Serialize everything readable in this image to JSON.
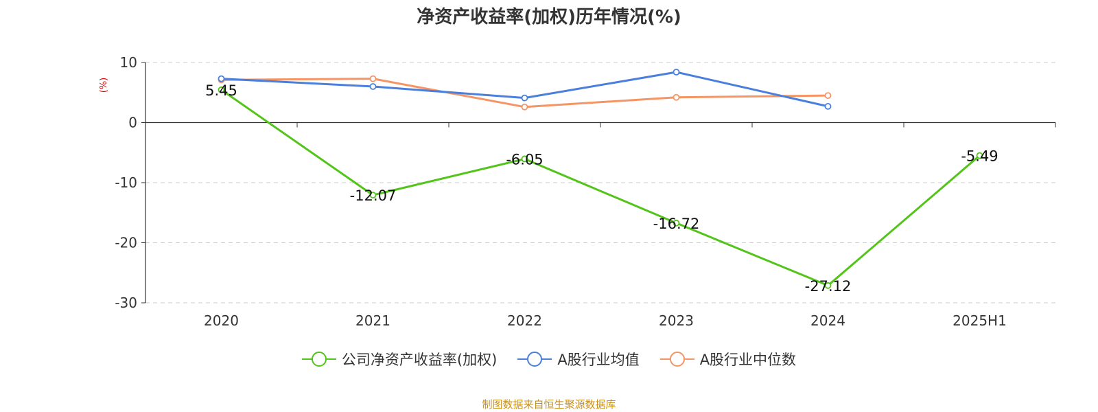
{
  "chart_data": {
    "type": "line",
    "title": "净资产收益率(加权)历年情况(%)",
    "ylabel": "(%)",
    "categories": [
      "2020",
      "2021",
      "2022",
      "2023",
      "2024",
      "2025H1"
    ],
    "ylim": [
      -30,
      10
    ],
    "yticks": [
      "10",
      "0",
      "-10",
      "-20",
      "-30"
    ],
    "grid": true,
    "legend_position": "bottom-center",
    "series": [
      {
        "name": "公司净资产收益率(加权)",
        "color": "#52c41a",
        "values": [
          5.45,
          -12.07,
          -6.05,
          -16.72,
          -27.12,
          -5.49
        ],
        "labels": [
          "5.45",
          "-12.07",
          "-6.05",
          "-16.72",
          "-27.12",
          "-5.49"
        ]
      },
      {
        "name": "A股行业均值",
        "color": "#4a7fdc",
        "values": [
          7.3,
          6.0,
          4.1,
          8.4,
          2.7,
          null
        ]
      },
      {
        "name": "A股行业中位数",
        "color": "#f59464",
        "values": [
          7.1,
          7.3,
          2.6,
          4.2,
          4.5,
          null
        ]
      }
    ]
  },
  "source_note": "制图数据来自恒生聚源数据库"
}
